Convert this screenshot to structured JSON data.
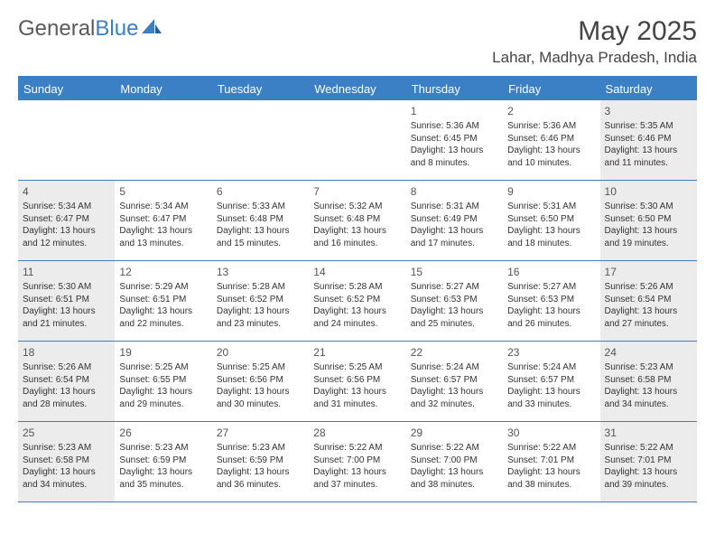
{
  "brand": {
    "name_part1": "General",
    "name_part2": "Blue"
  },
  "title": "May 2025",
  "location": "Lahar, Madhya Pradesh, India",
  "colors": {
    "accent": "#3b7fc4",
    "shaded_bg": "#ececec",
    "text": "#333333",
    "header_text": "#ffffff",
    "page_bg": "#ffffff"
  },
  "day_names": [
    "Sunday",
    "Monday",
    "Tuesday",
    "Wednesday",
    "Thursday",
    "Friday",
    "Saturday"
  ],
  "weeks": [
    [
      {
        "n": "",
        "shaded": false,
        "sr": "",
        "ss": "",
        "dl": ""
      },
      {
        "n": "",
        "shaded": false,
        "sr": "",
        "ss": "",
        "dl": ""
      },
      {
        "n": "",
        "shaded": false,
        "sr": "",
        "ss": "",
        "dl": ""
      },
      {
        "n": "",
        "shaded": false,
        "sr": "",
        "ss": "",
        "dl": ""
      },
      {
        "n": "1",
        "shaded": false,
        "sr": "Sunrise: 5:36 AM",
        "ss": "Sunset: 6:45 PM",
        "dl": "Daylight: 13 hours and 8 minutes."
      },
      {
        "n": "2",
        "shaded": false,
        "sr": "Sunrise: 5:36 AM",
        "ss": "Sunset: 6:46 PM",
        "dl": "Daylight: 13 hours and 10 minutes."
      },
      {
        "n": "3",
        "shaded": true,
        "sr": "Sunrise: 5:35 AM",
        "ss": "Sunset: 6:46 PM",
        "dl": "Daylight: 13 hours and 11 minutes."
      }
    ],
    [
      {
        "n": "4",
        "shaded": true,
        "sr": "Sunrise: 5:34 AM",
        "ss": "Sunset: 6:47 PM",
        "dl": "Daylight: 13 hours and 12 minutes."
      },
      {
        "n": "5",
        "shaded": false,
        "sr": "Sunrise: 5:34 AM",
        "ss": "Sunset: 6:47 PM",
        "dl": "Daylight: 13 hours and 13 minutes."
      },
      {
        "n": "6",
        "shaded": false,
        "sr": "Sunrise: 5:33 AM",
        "ss": "Sunset: 6:48 PM",
        "dl": "Daylight: 13 hours and 15 minutes."
      },
      {
        "n": "7",
        "shaded": false,
        "sr": "Sunrise: 5:32 AM",
        "ss": "Sunset: 6:48 PM",
        "dl": "Daylight: 13 hours and 16 minutes."
      },
      {
        "n": "8",
        "shaded": false,
        "sr": "Sunrise: 5:31 AM",
        "ss": "Sunset: 6:49 PM",
        "dl": "Daylight: 13 hours and 17 minutes."
      },
      {
        "n": "9",
        "shaded": false,
        "sr": "Sunrise: 5:31 AM",
        "ss": "Sunset: 6:50 PM",
        "dl": "Daylight: 13 hours and 18 minutes."
      },
      {
        "n": "10",
        "shaded": true,
        "sr": "Sunrise: 5:30 AM",
        "ss": "Sunset: 6:50 PM",
        "dl": "Daylight: 13 hours and 19 minutes."
      }
    ],
    [
      {
        "n": "11",
        "shaded": true,
        "sr": "Sunrise: 5:30 AM",
        "ss": "Sunset: 6:51 PM",
        "dl": "Daylight: 13 hours and 21 minutes."
      },
      {
        "n": "12",
        "shaded": false,
        "sr": "Sunrise: 5:29 AM",
        "ss": "Sunset: 6:51 PM",
        "dl": "Daylight: 13 hours and 22 minutes."
      },
      {
        "n": "13",
        "shaded": false,
        "sr": "Sunrise: 5:28 AM",
        "ss": "Sunset: 6:52 PM",
        "dl": "Daylight: 13 hours and 23 minutes."
      },
      {
        "n": "14",
        "shaded": false,
        "sr": "Sunrise: 5:28 AM",
        "ss": "Sunset: 6:52 PM",
        "dl": "Daylight: 13 hours and 24 minutes."
      },
      {
        "n": "15",
        "shaded": false,
        "sr": "Sunrise: 5:27 AM",
        "ss": "Sunset: 6:53 PM",
        "dl": "Daylight: 13 hours and 25 minutes."
      },
      {
        "n": "16",
        "shaded": false,
        "sr": "Sunrise: 5:27 AM",
        "ss": "Sunset: 6:53 PM",
        "dl": "Daylight: 13 hours and 26 minutes."
      },
      {
        "n": "17",
        "shaded": true,
        "sr": "Sunrise: 5:26 AM",
        "ss": "Sunset: 6:54 PM",
        "dl": "Daylight: 13 hours and 27 minutes."
      }
    ],
    [
      {
        "n": "18",
        "shaded": true,
        "sr": "Sunrise: 5:26 AM",
        "ss": "Sunset: 6:54 PM",
        "dl": "Daylight: 13 hours and 28 minutes."
      },
      {
        "n": "19",
        "shaded": false,
        "sr": "Sunrise: 5:25 AM",
        "ss": "Sunset: 6:55 PM",
        "dl": "Daylight: 13 hours and 29 minutes."
      },
      {
        "n": "20",
        "shaded": false,
        "sr": "Sunrise: 5:25 AM",
        "ss": "Sunset: 6:56 PM",
        "dl": "Daylight: 13 hours and 30 minutes."
      },
      {
        "n": "21",
        "shaded": false,
        "sr": "Sunrise: 5:25 AM",
        "ss": "Sunset: 6:56 PM",
        "dl": "Daylight: 13 hours and 31 minutes."
      },
      {
        "n": "22",
        "shaded": false,
        "sr": "Sunrise: 5:24 AM",
        "ss": "Sunset: 6:57 PM",
        "dl": "Daylight: 13 hours and 32 minutes."
      },
      {
        "n": "23",
        "shaded": false,
        "sr": "Sunrise: 5:24 AM",
        "ss": "Sunset: 6:57 PM",
        "dl": "Daylight: 13 hours and 33 minutes."
      },
      {
        "n": "24",
        "shaded": true,
        "sr": "Sunrise: 5:23 AM",
        "ss": "Sunset: 6:58 PM",
        "dl": "Daylight: 13 hours and 34 minutes."
      }
    ],
    [
      {
        "n": "25",
        "shaded": true,
        "sr": "Sunrise: 5:23 AM",
        "ss": "Sunset: 6:58 PM",
        "dl": "Daylight: 13 hours and 34 minutes."
      },
      {
        "n": "26",
        "shaded": false,
        "sr": "Sunrise: 5:23 AM",
        "ss": "Sunset: 6:59 PM",
        "dl": "Daylight: 13 hours and 35 minutes."
      },
      {
        "n": "27",
        "shaded": false,
        "sr": "Sunrise: 5:23 AM",
        "ss": "Sunset: 6:59 PM",
        "dl": "Daylight: 13 hours and 36 minutes."
      },
      {
        "n": "28",
        "shaded": false,
        "sr": "Sunrise: 5:22 AM",
        "ss": "Sunset: 7:00 PM",
        "dl": "Daylight: 13 hours and 37 minutes."
      },
      {
        "n": "29",
        "shaded": false,
        "sr": "Sunrise: 5:22 AM",
        "ss": "Sunset: 7:00 PM",
        "dl": "Daylight: 13 hours and 38 minutes."
      },
      {
        "n": "30",
        "shaded": false,
        "sr": "Sunrise: 5:22 AM",
        "ss": "Sunset: 7:01 PM",
        "dl": "Daylight: 13 hours and 38 minutes."
      },
      {
        "n": "31",
        "shaded": true,
        "sr": "Sunrise: 5:22 AM",
        "ss": "Sunset: 7:01 PM",
        "dl": "Daylight: 13 hours and 39 minutes."
      }
    ]
  ]
}
